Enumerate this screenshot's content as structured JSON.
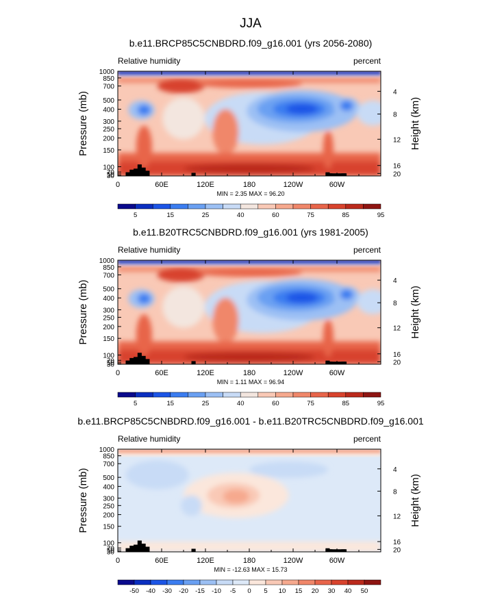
{
  "figure": {
    "title": "JJA"
  },
  "colors": {
    "rh_scale": [
      "#0a0a8c",
      "#0b2fc0",
      "#1c55e6",
      "#3b7df0",
      "#6aa0f2",
      "#9cc0f4",
      "#c8dbf6",
      "#f3e6df",
      "#f9c9b6",
      "#f6a98e",
      "#f0876a",
      "#e8654a",
      "#d8432d",
      "#bb2a1c",
      "#8e1512"
    ],
    "diff_scale": [
      "#0a0a8c",
      "#0b2fc0",
      "#1c55e6",
      "#3b7df0",
      "#6aa0f2",
      "#9cc0f4",
      "#c8dbf6",
      "#dde9f8",
      "#fbe7dc",
      "#f9c9b6",
      "#f6a98e",
      "#f0876a",
      "#e8654a",
      "#d8432d",
      "#bb2a1c",
      "#8e1512"
    ],
    "land": "#000000"
  },
  "chart_data": [
    {
      "type": "heatmap",
      "title": "b.e11.BRCP85C5CNBDRD.f09_g16.001 (yrs 2056-2080)",
      "left_label": "Relative humidity",
      "right_label": "percent",
      "xlabel": "",
      "ylabel": "Pressure (mb)",
      "ylabel_right": "Height (km)",
      "x_ticks": [
        "0",
        "60E",
        "120E",
        "180",
        "120W",
        "60W"
      ],
      "x_range": [
        0,
        360
      ],
      "y_range_mb": [
        1000,
        80
      ],
      "pressure_ticks": [
        "1000",
        "850",
        "700",
        "500",
        "400",
        "300",
        "250",
        "200",
        "150",
        "100",
        "70",
        "50",
        "30"
      ],
      "height_ticks": [
        "4",
        "8",
        "12",
        "16",
        "20"
      ],
      "stats": "MIN =   2.35  MAX =  96.20",
      "min": 2.35,
      "max": 96.2,
      "colorbar_labels": [
        "5",
        "15",
        "25",
        "40",
        "60",
        "75",
        "85",
        "95"
      ],
      "colorbar_levels": [
        5,
        10,
        15,
        20,
        25,
        30,
        40,
        50,
        60,
        70,
        75,
        80,
        85,
        90,
        95
      ]
    },
    {
      "type": "heatmap",
      "title": "b.e11.B20TRC5CNBDRD.f09_g16.001 (yrs 1981-2005)",
      "left_label": "Relative humidity",
      "right_label": "percent",
      "xlabel": "",
      "ylabel": "Pressure (mb)",
      "ylabel_right": "Height (km)",
      "x_ticks": [
        "0",
        "60E",
        "120E",
        "180",
        "120W",
        "60W"
      ],
      "x_range": [
        0,
        360
      ],
      "y_range_mb": [
        1000,
        80
      ],
      "pressure_ticks": [
        "1000",
        "850",
        "700",
        "500",
        "400",
        "300",
        "250",
        "200",
        "150",
        "100",
        "70",
        "50",
        "30"
      ],
      "height_ticks": [
        "4",
        "8",
        "12",
        "16",
        "20"
      ],
      "stats": "MIN =   1.11  MAX =  96.94",
      "min": 1.11,
      "max": 96.94,
      "colorbar_labels": [
        "5",
        "15",
        "25",
        "40",
        "60",
        "75",
        "85",
        "95"
      ],
      "colorbar_levels": [
        5,
        10,
        15,
        20,
        25,
        30,
        40,
        50,
        60,
        70,
        75,
        80,
        85,
        90,
        95
      ]
    },
    {
      "type": "heatmap",
      "title": "b.e11.BRCP85C5CNBDRD.f09_g16.001 - b.e11.B20TRC5CNBDRD.f09_g16.001",
      "left_label": "Relative humidity",
      "right_label": "percent",
      "xlabel": "",
      "ylabel": "Pressure (mb)",
      "ylabel_right": "Height (km)",
      "x_ticks": [
        "0",
        "60E",
        "120E",
        "180",
        "120W",
        "60W"
      ],
      "x_range": [
        0,
        360
      ],
      "y_range_mb": [
        1000,
        80
      ],
      "pressure_ticks": [
        "1000",
        "850",
        "700",
        "500",
        "400",
        "300",
        "250",
        "200",
        "150",
        "100",
        "70",
        "50",
        "30"
      ],
      "height_ticks": [
        "4",
        "8",
        "12",
        "16",
        "20"
      ],
      "stats": "MIN = -12.63  MAX =  15.73",
      "min": -12.63,
      "max": 15.73,
      "colorbar_labels": [
        "-50",
        "-40",
        "-30",
        "-20",
        "-15",
        "-10",
        "-5",
        "0",
        "5",
        "10",
        "15",
        "20",
        "30",
        "40",
        "50"
      ],
      "colorbar_levels": [
        -50,
        -40,
        -30,
        -20,
        -15,
        -10,
        -5,
        0,
        5,
        10,
        15,
        20,
        30,
        40,
        50
      ]
    }
  ]
}
